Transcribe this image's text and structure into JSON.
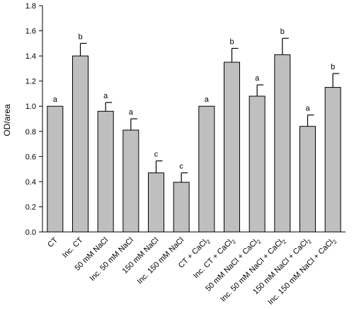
{
  "chart_data": {
    "type": "bar",
    "ylabel": "OD/area",
    "ylim": [
      0,
      1.8
    ],
    "yticks": [
      "0.0",
      "0.2",
      "0.4",
      "0.6",
      "0.8",
      "1.0",
      "1.2",
      "1.4",
      "1.6",
      "1.8"
    ],
    "grid": false,
    "bar_color": "#bfbfbf",
    "categories": [
      {
        "text": "CT",
        "sub": ""
      },
      {
        "text": "Inc. CT",
        "sub": ""
      },
      {
        "text": "50 mM NaCl",
        "sub": ""
      },
      {
        "text": "Inc. 50 mM NaCl",
        "sub": ""
      },
      {
        "text": "150 mM NaCl",
        "sub": ""
      },
      {
        "text": "Inc. 150 mM NaCl",
        "sub": ""
      },
      {
        "text": "CT + CaCl",
        "sub": "2"
      },
      {
        "text": "Inc. CT + CaCl",
        "sub": "2"
      },
      {
        "text": "50 mM NaCl + CaCl",
        "sub": "2"
      },
      {
        "text": "Inc. 50 mM NaCl + CaCl",
        "sub": "2"
      },
      {
        "text": "150 mM NaCl + CaCl",
        "sub": "2"
      },
      {
        "text": "Inc. 150 mM NaCl + CaCl",
        "sub": "2"
      }
    ],
    "values": [
      1.0,
      1.4,
      0.96,
      0.81,
      0.47,
      0.395,
      1.0,
      1.35,
      1.08,
      1.41,
      0.84,
      1.15
    ],
    "errors": [
      0.0,
      0.1,
      0.07,
      0.09,
      0.095,
      0.075,
      0.0,
      0.11,
      0.09,
      0.13,
      0.09,
      0.11
    ],
    "letters": [
      "a",
      "b",
      "a",
      "a",
      "c",
      "c",
      "a",
      "b",
      "a",
      "b",
      "a",
      "b"
    ]
  }
}
